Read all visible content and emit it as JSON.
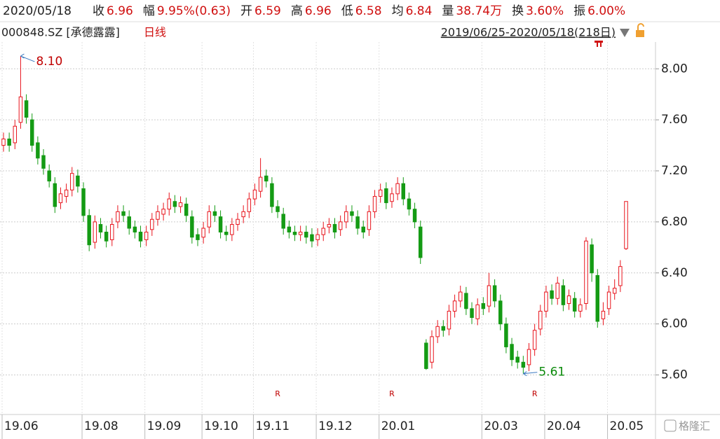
{
  "header": {
    "date": "2020/05/18",
    "fields": [
      {
        "label": "收",
        "value": "6.96"
      },
      {
        "label": "幅",
        "value": "9.95%(0.63)"
      },
      {
        "label": "开",
        "value": "6.59"
      },
      {
        "label": "高",
        "value": "6.96"
      },
      {
        "label": "低",
        "value": "6.58"
      },
      {
        "label": "均",
        "value": "6.84"
      },
      {
        "label": "量",
        "value": "38.74万"
      },
      {
        "label": "换",
        "value": "3.60%"
      },
      {
        "label": "振",
        "value": "6.00%"
      }
    ],
    "stock": "000848.SZ [承德露露]",
    "period": "日线",
    "range": "2019/06/25-2020/05/18(218日)"
  },
  "chart_data": {
    "type": "candlestick",
    "up_color": "#e8141c",
    "down_color": "#149b14",
    "open": [
      7.4,
      7.45,
      7.42,
      7.58,
      7.75,
      7.6,
      7.42,
      7.32,
      7.2,
      7.1,
      6.95,
      7.0,
      7.05,
      7.16,
      7.06,
      6.85,
      6.64,
      6.78,
      6.72,
      6.66,
      6.8,
      6.88,
      6.84,
      6.76,
      6.72,
      6.66,
      6.74,
      6.82,
      6.86,
      6.9,
      6.96,
      6.92,
      6.94,
      6.84,
      6.7,
      6.68,
      6.76,
      6.88,
      6.84,
      6.72,
      6.7,
      6.78,
      6.84,
      6.88,
      6.98,
      7.04,
      7.16,
      7.1,
      6.92,
      6.86,
      6.76,
      6.72,
      6.7,
      6.72,
      6.7,
      6.66,
      6.7,
      6.76,
      6.78,
      6.74,
      6.8,
      6.88,
      6.84,
      6.76,
      6.74,
      6.88,
      7.0,
      7.06,
      6.96,
      7.02,
      7.1,
      6.98,
      6.9,
      6.76,
      5.85,
      5.7,
      5.9,
      5.98,
      5.96,
      6.1,
      6.18,
      6.24,
      6.12,
      6.04,
      6.16,
      6.14,
      6.3,
      6.18,
      6.0,
      5.84,
      5.74,
      5.7,
      5.68,
      5.8,
      5.96,
      6.1,
      6.26,
      6.2,
      6.3,
      6.16,
      6.2,
      6.1,
      6.16,
      6.62,
      6.38,
      6.04,
      6.12,
      6.24,
      6.3,
      6.59
    ],
    "high": [
      7.5,
      7.5,
      7.6,
      8.1,
      7.8,
      7.65,
      7.47,
      7.37,
      7.25,
      7.15,
      7.07,
      7.1,
      7.23,
      7.21,
      7.11,
      6.9,
      6.85,
      6.83,
      6.77,
      6.83,
      6.93,
      6.93,
      6.89,
      6.81,
      6.77,
      6.77,
      6.87,
      6.93,
      6.95,
      7.03,
      7.01,
      7.0,
      6.99,
      6.89,
      6.75,
      6.8,
      6.93,
      6.93,
      6.89,
      6.77,
      6.83,
      6.87,
      6.93,
      7.03,
      7.1,
      7.3,
      7.21,
      7.15,
      6.97,
      6.91,
      6.81,
      6.77,
      6.77,
      6.77,
      6.75,
      6.75,
      6.8,
      6.83,
      6.83,
      6.85,
      6.93,
      6.93,
      6.89,
      6.81,
      6.93,
      7.05,
      7.1,
      7.11,
      7.07,
      7.15,
      7.15,
      7.03,
      6.95,
      6.81,
      5.88,
      5.95,
      6.03,
      6.03,
      6.15,
      6.23,
      6.3,
      6.29,
      6.17,
      6.2,
      6.21,
      6.4,
      6.35,
      6.23,
      6.05,
      5.89,
      5.79,
      5.75,
      5.85,
      6.0,
      6.15,
      6.3,
      6.31,
      6.37,
      6.35,
      6.27,
      6.25,
      6.2,
      6.68,
      6.67,
      6.43,
      6.17,
      6.3,
      6.35,
      6.5,
      6.96
    ],
    "low": [
      7.35,
      7.35,
      7.37,
      7.53,
      7.57,
      7.35,
      7.25,
      7.17,
      7.07,
      6.87,
      6.9,
      6.95,
      7.0,
      7.03,
      6.8,
      6.57,
      6.59,
      6.67,
      6.6,
      6.61,
      6.75,
      6.8,
      6.7,
      6.67,
      6.6,
      6.61,
      6.69,
      6.77,
      6.81,
      6.85,
      6.87,
      6.87,
      6.8,
      6.63,
      6.61,
      6.63,
      6.71,
      6.8,
      6.67,
      6.65,
      6.65,
      6.73,
      6.79,
      6.83,
      6.93,
      6.99,
      7.07,
      6.87,
      6.83,
      6.7,
      6.67,
      6.65,
      6.65,
      6.63,
      6.6,
      6.61,
      6.65,
      6.71,
      6.67,
      6.69,
      6.75,
      6.8,
      6.7,
      6.67,
      6.69,
      6.83,
      6.95,
      6.9,
      6.91,
      6.97,
      6.93,
      6.85,
      6.75,
      6.47,
      5.64,
      5.65,
      5.85,
      5.9,
      5.91,
      6.05,
      6.13,
      6.07,
      6.0,
      5.99,
      6.07,
      6.09,
      6.13,
      5.95,
      5.77,
      5.67,
      5.65,
      5.61,
      5.63,
      5.75,
      5.91,
      6.05,
      6.15,
      6.15,
      6.1,
      6.11,
      6.05,
      6.05,
      6.11,
      6.33,
      5.97,
      5.99,
      6.07,
      6.19,
      6.25,
      6.58
    ],
    "close": [
      7.45,
      7.4,
      7.55,
      7.78,
      7.62,
      7.4,
      7.3,
      7.22,
      7.12,
      6.92,
      7.02,
      7.05,
      7.18,
      7.08,
      6.85,
      6.62,
      6.8,
      6.72,
      6.65,
      6.78,
      6.88,
      6.85,
      6.75,
      6.72,
      6.65,
      6.72,
      6.82,
      6.88,
      6.9,
      6.98,
      6.92,
      6.95,
      6.85,
      6.68,
      6.66,
      6.75,
      6.88,
      6.85,
      6.72,
      6.7,
      6.78,
      6.82,
      6.88,
      6.98,
      7.05,
      7.15,
      7.12,
      6.92,
      6.88,
      6.75,
      6.72,
      6.7,
      6.72,
      6.68,
      6.65,
      6.7,
      6.75,
      6.78,
      6.72,
      6.8,
      6.88,
      6.85,
      6.75,
      6.72,
      6.88,
      7.0,
      7.05,
      6.95,
      7.02,
      7.1,
      6.98,
      6.9,
      6.8,
      6.52,
      5.65,
      5.9,
      5.98,
      5.95,
      6.1,
      6.18,
      6.25,
      6.12,
      6.05,
      6.15,
      6.12,
      6.3,
      6.18,
      6.0,
      5.82,
      5.72,
      5.7,
      5.66,
      5.8,
      5.95,
      6.1,
      6.25,
      6.2,
      6.32,
      6.15,
      6.22,
      6.1,
      6.15,
      6.65,
      6.4,
      6.02,
      6.1,
      6.25,
      6.28,
      6.45,
      6.96
    ],
    "ylim": [
      5.29,
      8.21
    ],
    "yticks": [
      {
        "value": 5.6,
        "label": "5.60"
      },
      {
        "value": 6.0,
        "label": "6.00"
      },
      {
        "value": 6.4,
        "label": "6.40"
      },
      {
        "value": 6.8,
        "label": "6.80"
      },
      {
        "value": 7.2,
        "label": "7.20"
      },
      {
        "value": 7.6,
        "label": "7.60"
      },
      {
        "value": 8.0,
        "label": "8.00"
      }
    ],
    "xticks": [
      {
        "value": 0,
        "label": "19.06"
      },
      {
        "value": 14,
        "label": "19.08"
      },
      {
        "value": 25,
        "label": "19.09"
      },
      {
        "value": 35,
        "label": "19.10"
      },
      {
        "value": 44,
        "label": "19.11"
      },
      {
        "value": 55,
        "label": "19.12"
      },
      {
        "value": 66,
        "label": "20.01"
      },
      {
        "value": 84,
        "label": "20.03"
      },
      {
        "value": 95,
        "label": "20.04"
      },
      {
        "value": 106,
        "label": "20.05"
      }
    ],
    "annotations": [
      {
        "index": 3,
        "label": "8.10",
        "color": "#c00000"
      },
      {
        "index": 91,
        "label": "5.61",
        "color": "#0a8a0a"
      }
    ],
    "markers": [
      {
        "index": 48,
        "label": "R"
      },
      {
        "index": 68,
        "label": "R"
      },
      {
        "index": 93,
        "label": "R"
      }
    ],
    "grid": true,
    "watermark": "格隆汇"
  }
}
